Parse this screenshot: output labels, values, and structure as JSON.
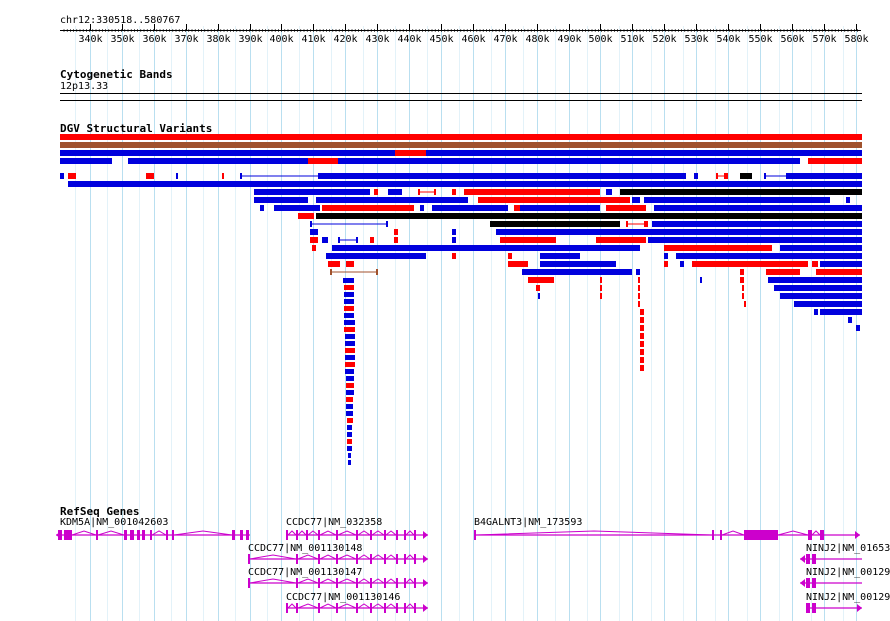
{
  "ruler": {
    "title": "chr12:330518..580767",
    "ticks": [
      "340k",
      "350k",
      "360k",
      "370k",
      "380k",
      "390k",
      "400k",
      "410k",
      "420k",
      "430k",
      "440k",
      "450k",
      "460k",
      "470k",
      "480k",
      "490k",
      "500k",
      "510k",
      "520k",
      "530k",
      "540k",
      "550k",
      "560k",
      "570k",
      "580k"
    ]
  },
  "cytoband": {
    "title": "Cytogenetic Bands",
    "band": "12p13.33"
  },
  "sv": {
    "title": "DGV Structural Variants",
    "colors": {
      "gain": "#ff0000",
      "loss": "#0000dd",
      "inversion": "#000000",
      "complex": "#a0522d"
    }
  },
  "refseq": {
    "title": "RefSeq Genes",
    "color": "#cc00cc",
    "genes": [
      {
        "label": "KDM5A|NM_001042603"
      },
      {
        "label": "CCDC77|NM_032358"
      },
      {
        "label": "B4GALNT3|NM_173593"
      },
      {
        "label": "CCDC77|NM_001130148"
      },
      {
        "label": "NINJ2|NM_01653"
      },
      {
        "label": "CCDC77|NM_001130147"
      },
      {
        "label": "NINJ2|NM_00129"
      },
      {
        "label": "CCDC77|NM_001130146"
      },
      {
        "label": "NINJ2|NM_00129"
      }
    ]
  }
}
